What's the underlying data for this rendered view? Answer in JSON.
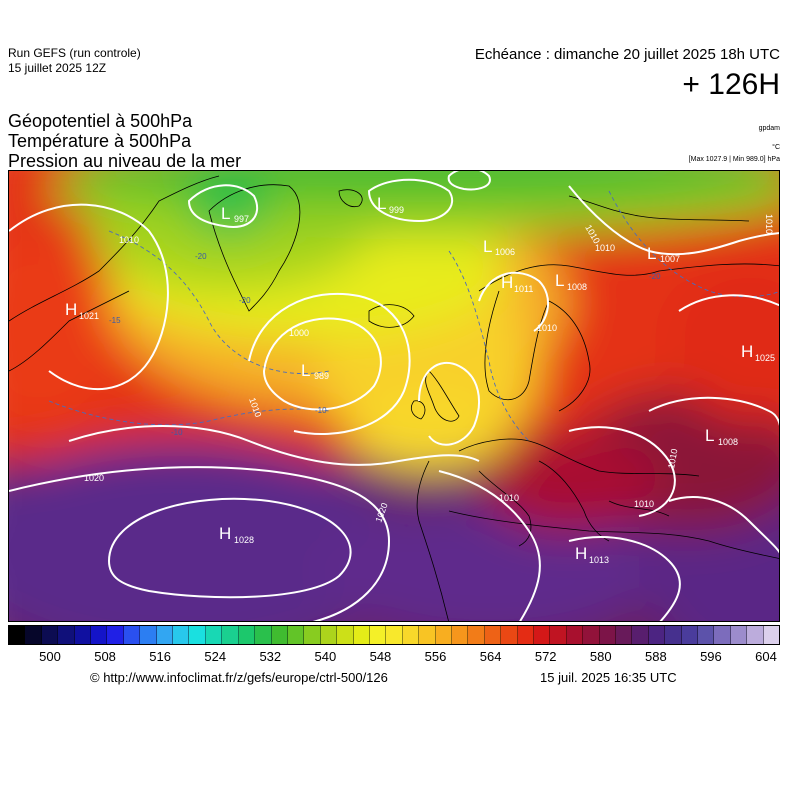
{
  "header": {
    "run_title": "Run GEFS (run controle)",
    "run_date": "15 juillet 2025 12Z",
    "echeance": "Echéance : dimanche 20 juillet 2025 18h UTC",
    "lead_time": "+ 126H"
  },
  "layers": {
    "line1": "Géopotentiel à 500hPa",
    "line2": "Température à 500hPa",
    "line3": "Pression au niveau de la mer"
  },
  "units": {
    "geopotential": "gpdam",
    "temperature": "°C",
    "pressure_range": "[Max 1027.9 | Min 989.0] hPa"
  },
  "map": {
    "pressure_centers": [
      {
        "type": "L",
        "value": "997"
      },
      {
        "type": "L",
        "value": "999"
      },
      {
        "type": "L",
        "value": "1006"
      },
      {
        "type": "H",
        "value": "1011"
      },
      {
        "type": "L",
        "value": "1008"
      },
      {
        "type": "L",
        "value": "1007"
      },
      {
        "type": "H",
        "value": "1021"
      },
      {
        "type": "L",
        "value": "989"
      },
      {
        "type": "H",
        "value": "1025"
      },
      {
        "type": "L",
        "value": "1008"
      },
      {
        "type": "H",
        "value": "1028"
      },
      {
        "type": "H",
        "value": "1013"
      }
    ],
    "isobar_labels": [
      "1010",
      "1000",
      "1010",
      "1020",
      "1020",
      "1010",
      "1010",
      "1010",
      "1010",
      "1010",
      "1010",
      "1010"
    ],
    "isotherm_labels": [
      "-20",
      "-20",
      "-15",
      "-10",
      "-10",
      "-20"
    ]
  },
  "colorbar": {
    "colors": [
      "#000000",
      "#06062a",
      "#0c0c52",
      "#10107a",
      "#1010a0",
      "#1414c8",
      "#2020e6",
      "#2a50f0",
      "#2c7ef2",
      "#32a6f2",
      "#28c8ec",
      "#1ae0e0",
      "#18d8b4",
      "#1ad090",
      "#1cc86c",
      "#2ac04c",
      "#40bc30",
      "#62c428",
      "#88cc20",
      "#acd41c",
      "#cce018",
      "#e4ec18",
      "#f4f028",
      "#f8e82c",
      "#f8d82a",
      "#f8c424",
      "#f8ae20",
      "#f6961c",
      "#f27c18",
      "#ee6216",
      "#ea4814",
      "#e42c14",
      "#d41818",
      "#c01422",
      "#a8102e",
      "#92123a",
      "#7c1448",
      "#681a5a",
      "#581e6e",
      "#4c2482",
      "#46308e",
      "#4a3c9c",
      "#5c52aa",
      "#7c6cbc",
      "#9c8ccc",
      "#bcacdc",
      "#dcd0ec"
    ],
    "tick_labels": [
      "500",
      "508",
      "516",
      "524",
      "532",
      "540",
      "548",
      "556",
      "564",
      "572",
      "580",
      "588",
      "596",
      "604"
    ]
  },
  "footer": {
    "source": "© http://www.infoclimat.fr/z/gefs/europe/ctrl-500/126",
    "generated": "15 juil. 2025 16:35 UTC"
  }
}
